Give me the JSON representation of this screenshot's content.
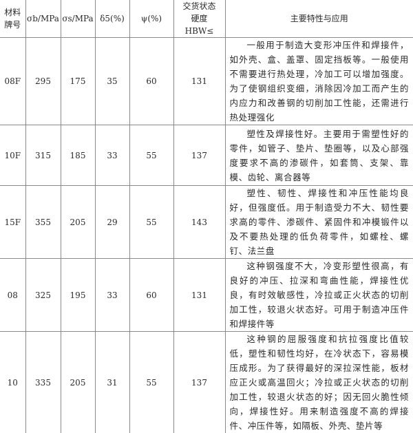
{
  "headers": [
    "材料牌号",
    "σb/MPa",
    "σs/MPa",
    "δ5(%)",
    "ψ(%)",
    "交货状态硬度 HBW≤",
    "主要特性与应用"
  ],
  "rows": [
    {
      "grade": "08F",
      "sb": "295",
      "ss": "175",
      "d5": "35",
      "psi": "60",
      "hbw": "131",
      "desc": "一般用于制造大变形冲压件和焊接件，如外壳、盒、盖罩、固定挡板等。一般使用不需要进行热处理，冷加工可以增加强度。为了使钢组织变细，消除因冷加工而产生的内应力和改善钢的切削加工性能，还需进行热处理强化"
    },
    {
      "grade": "10F",
      "sb": "315",
      "ss": "185",
      "d5": "33",
      "psi": "55",
      "hbw": "137",
      "desc": "塑性及焊接性好。主要用于需塑性好的零件，如管子、垫片、垫圈等，以及心部强度要求不高的渗碳件，如套筒、支架、靠模、齿轮、离合器等"
    },
    {
      "grade": "15F",
      "sb": "355",
      "ss": "205",
      "d5": "29",
      "psi": "55",
      "hbw": "143",
      "desc": "塑性、韧性、焊接性和冲压性能均良好，但强度低。用于制造受力不大、韧性要求高的零件、渗碳件、紧固件和冲模锻件以及不要热处理的低负荷零件，如螺栓、螺钉、法兰盘"
    },
    {
      "grade": "08",
      "sb": "325",
      "ss": "195",
      "d5": "33",
      "psi": "60",
      "hbw": "131",
      "desc": "这种钢强度不大，冷变形塑性很高，有良好的冲压、拉深和弯曲性能，焊接性优良，有时效敏感性，冷拉或正火状态的切削加工性，较退火状态好。可用于制造冲压件和焊接件等"
    },
    {
      "grade": "10",
      "sb": "335",
      "ss": "205",
      "d5": "31",
      "psi": "55",
      "hbw": "137",
      "desc": "这种钢的屈服强度和抗拉强度比值较低，塑性和韧性均好，在冷状态下，容易模压成形。为了获得最好的深拉深性能，板材应正火或高温回火；冷拉或正火状态的切削加工性，较退火状态的好；因无回火脆性倾向，焊接性好。用来制造强度不高的焊接件、冲压件等，如隔板、外壳、垫片等"
    }
  ]
}
